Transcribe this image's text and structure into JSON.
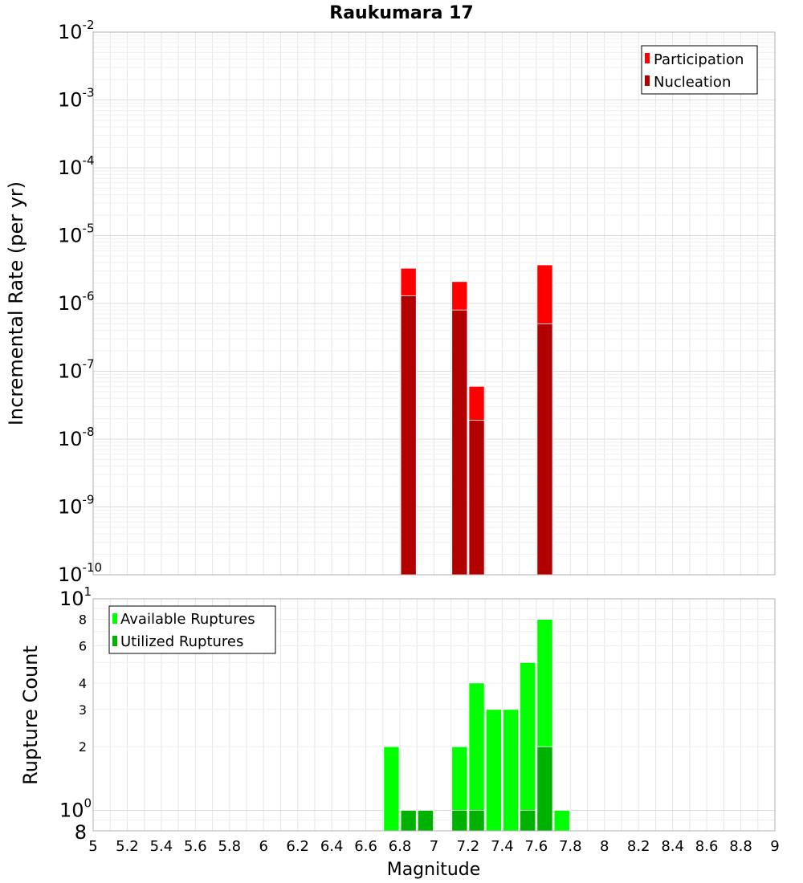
{
  "title": "Raukumara 17",
  "colors": {
    "participation": "#ff0000",
    "nucleation": "#b20000",
    "available": "#00ff00",
    "utilized": "#00b200",
    "grid": "#e6e6e6",
    "frame": "#b0b0b0"
  },
  "chart_data": [
    {
      "type": "bar",
      "panel": "rates",
      "ylabel": "Incremental Rate (per yr)",
      "yscale": "log",
      "ylim": [
        1e-10,
        0.01
      ],
      "xlim": [
        5,
        9
      ],
      "grid": true,
      "legend_position": "top-right",
      "y_tick_labels": [
        {
          "value": 1e-10,
          "base": "10",
          "exp": "-10"
        },
        {
          "value": 1e-09,
          "base": "10",
          "exp": "-9"
        },
        {
          "value": 1e-08,
          "base": "10",
          "exp": "-8"
        },
        {
          "value": 1e-07,
          "base": "10",
          "exp": "-7"
        },
        {
          "value": 1e-06,
          "base": "10",
          "exp": "-6"
        },
        {
          "value": 1e-05,
          "base": "10",
          "exp": "-5"
        },
        {
          "value": 0.0001,
          "base": "10",
          "exp": "-4"
        },
        {
          "value": 0.001,
          "base": "10",
          "exp": "-3"
        },
        {
          "value": 0.01,
          "base": "10",
          "exp": "-2"
        }
      ],
      "series": [
        {
          "name": "Participation",
          "color": "#ff0000",
          "x": [
            6.85,
            7.15,
            7.25,
            7.65
          ],
          "values": [
            3.3e-06,
            2.1e-06,
            6e-08,
            3.7e-06
          ]
        },
        {
          "name": "Nucleation",
          "color": "#b20000",
          "x": [
            6.85,
            7.15,
            7.25,
            7.65
          ],
          "values": [
            1.3e-06,
            8e-07,
            1.9e-08,
            5e-07
          ]
        }
      ]
    },
    {
      "type": "bar",
      "panel": "counts",
      "ylabel": "Rupture Count",
      "xlabel": "Magnitude",
      "yscale": "log",
      "ylim": [
        0.8,
        10
      ],
      "xlim": [
        5,
        9
      ],
      "grid": true,
      "legend_position": "top-left",
      "x_tick_labels": [
        "5",
        "5.2",
        "5.4",
        "5.6",
        "5.8",
        "6",
        "6.2",
        "6.4",
        "6.6",
        "6.8",
        "7",
        "7.2",
        "7.4",
        "7.6",
        "7.8",
        "8",
        "8.2",
        "8.4",
        "8.6",
        "8.8",
        "9"
      ],
      "y_tick_labels": [
        {
          "value": 1,
          "base": "10",
          "exp": "0"
        },
        {
          "value": 10,
          "base": "10",
          "exp": "1"
        }
      ],
      "y_minor_tick_labels": [
        "2",
        "3",
        "4",
        "6",
        "8"
      ],
      "y_bottom_label": "8",
      "series": [
        {
          "name": "Available Ruptures",
          "color": "#00ff00",
          "x": [
            6.75,
            6.85,
            6.95,
            7.15,
            7.25,
            7.35,
            7.45,
            7.55,
            7.65,
            7.75
          ],
          "values": [
            2,
            1,
            1,
            2,
            4,
            3,
            3,
            5,
            8,
            1
          ]
        },
        {
          "name": "Utilized Ruptures",
          "color": "#00b200",
          "x": [
            6.85,
            6.95,
            7.15,
            7.25,
            7.55,
            7.65
          ],
          "values": [
            1,
            1,
            1,
            1,
            1,
            2
          ]
        }
      ]
    }
  ]
}
